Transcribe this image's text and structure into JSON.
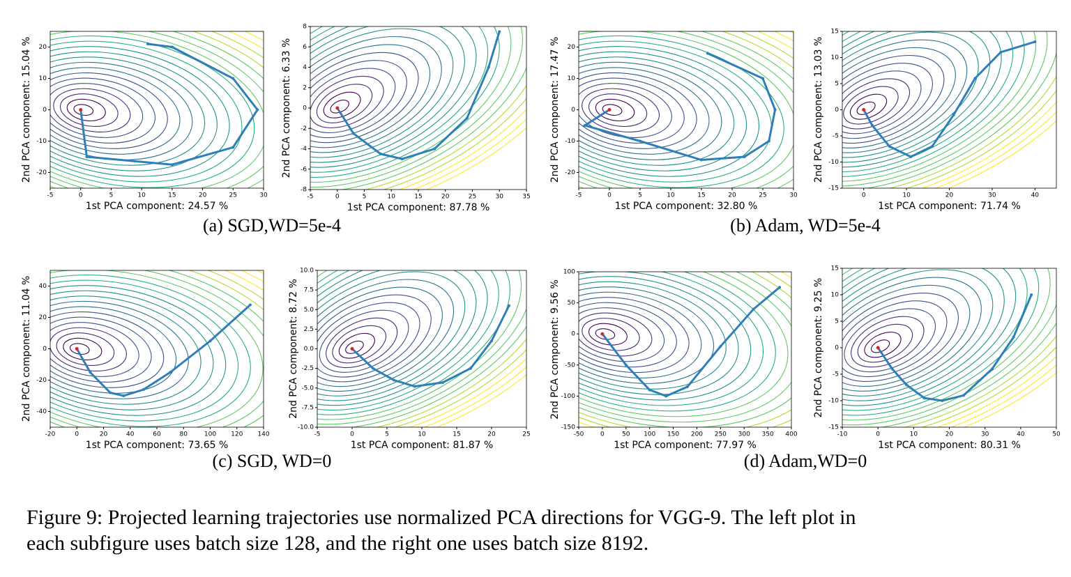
{
  "chart_data": [
    {
      "type": "line",
      "xlabel": "1st PCA component: 24.57 %",
      "ylabel": "2nd PCA component: 15.04 %",
      "xlim": [
        -5,
        30
      ],
      "xticks": [
        -5,
        0,
        5,
        10,
        15,
        20,
        25,
        30
      ],
      "ylim": [
        -25,
        25
      ],
      "yticks": [
        -20,
        -10,
        0,
        10,
        20
      ],
      "series": [
        {
          "color": "#2e7fb8",
          "x": [
            0,
            1,
            15,
            25,
            29,
            25,
            15,
            11
          ],
          "values": [
            0,
            -15,
            -17.5,
            -12,
            0,
            10,
            20,
            21
          ]
        }
      ],
      "start_color": "#d62728"
    },
    {
      "type": "line",
      "xlabel": "1st PCA component: 87.78 %",
      "ylabel": "2nd PCA component: 6.33 %",
      "xlim": [
        -5,
        35
      ],
      "xticks": [
        -5,
        0,
        5,
        10,
        15,
        20,
        25,
        30,
        35
      ],
      "ylim": [
        -8,
        8
      ],
      "yticks": [
        -8,
        -6,
        -4,
        -2,
        0,
        2,
        4,
        6,
        8
      ],
      "series": [
        {
          "color": "#2e7fb8",
          "x": [
            0,
            3,
            8,
            12,
            18,
            24,
            28,
            30
          ],
          "values": [
            0,
            -2.5,
            -4.5,
            -5,
            -4,
            -1,
            4,
            7.5
          ]
        }
      ],
      "start_color": "#d62728"
    },
    {
      "type": "line",
      "xlabel": "1st PCA component: 32.80 %",
      "ylabel": "2nd PCA component: 17.47 %",
      "xlim": [
        -5,
        30
      ],
      "xticks": [
        -5,
        0,
        5,
        10,
        15,
        20,
        25,
        30
      ],
      "ylim": [
        -25,
        25
      ],
      "yticks": [
        -20,
        -10,
        0,
        10,
        20
      ],
      "series": [
        {
          "color": "#2e7fb8",
          "x": [
            0,
            -4,
            5,
            15,
            22,
            26,
            27,
            25,
            16
          ],
          "values": [
            0,
            -5,
            -10,
            -16,
            -15,
            -10,
            0,
            10,
            18
          ]
        }
      ],
      "start_color": "#d62728"
    },
    {
      "type": "line",
      "xlabel": "1st PCA component: 71.74 %",
      "ylabel": "2nd PCA component: 13.03 %",
      "xlim": [
        -5,
        45
      ],
      "xticks": [
        0,
        10,
        20,
        30,
        40
      ],
      "ylim": [
        -15,
        15
      ],
      "yticks": [
        -15,
        -10,
        -5,
        0,
        5,
        10,
        15
      ],
      "series": [
        {
          "color": "#2e7fb8",
          "x": [
            0,
            2,
            6,
            11,
            16,
            21,
            26,
            32,
            40
          ],
          "values": [
            0,
            -3,
            -7,
            -9,
            -7,
            -1,
            6,
            11,
            13
          ]
        }
      ],
      "start_color": "#d62728"
    },
    {
      "type": "line",
      "xlabel": "1st PCA component: 73.65 %",
      "ylabel": "2nd PCA component: 11.04 %",
      "xlim": [
        -20,
        140
      ],
      "xticks": [
        -20,
        0,
        20,
        40,
        60,
        80,
        100,
        120,
        140
      ],
      "ylim": [
        -50,
        50
      ],
      "yticks": [
        -40,
        -20,
        0,
        20,
        40
      ],
      "series": [
        {
          "color": "#2e7fb8",
          "x": [
            0,
            10,
            25,
            35,
            50,
            70,
            100,
            130
          ],
          "values": [
            0,
            -15,
            -28,
            -30,
            -26,
            -15,
            5,
            28
          ]
        }
      ],
      "start_color": "#d62728"
    },
    {
      "type": "line",
      "xlabel": "1st PCA component: 81.87 %",
      "ylabel": "2nd PCA component: 8.72 %",
      "xlim": [
        -5,
        25
      ],
      "xticks": [
        -5,
        0,
        5,
        10,
        15,
        20,
        25
      ],
      "ylim": [
        -10,
        10
      ],
      "yticks": [
        {
          "value": -10,
          "label": "-10.0"
        },
        {
          "value": -7.5,
          "label": "-7.5"
        },
        {
          "value": -5,
          "label": "-5.0"
        },
        {
          "value": -2.5,
          "label": "-2.5"
        },
        {
          "value": 0,
          "label": "0.0"
        },
        {
          "value": 2.5,
          "label": "2.5"
        },
        {
          "value": 5,
          "label": "5.0"
        },
        {
          "value": 7.5,
          "label": "7.5"
        },
        {
          "value": 10,
          "label": "10.0"
        }
      ],
      "series": [
        {
          "color": "#2e7fb8",
          "x": [
            0,
            3,
            6,
            9,
            13,
            17,
            20,
            22.5
          ],
          "values": [
            0,
            -2.5,
            -4,
            -4.8,
            -4.3,
            -2.5,
            1,
            5.5
          ]
        }
      ],
      "start_color": "#d62728"
    },
    {
      "type": "line",
      "xlabel": "1st PCA component: 77.97 %",
      "ylabel": "2nd PCA component: 9.56 %",
      "xlim": [
        -50,
        400
      ],
      "xticks": [
        -50,
        0,
        50,
        100,
        150,
        200,
        250,
        300,
        350,
        400
      ],
      "ylim": [
        -150,
        100
      ],
      "yticks": [
        -150,
        -100,
        -50,
        0,
        50,
        100
      ],
      "series": [
        {
          "color": "#2e7fb8",
          "x": [
            0,
            50,
            100,
            135,
            180,
            250,
            320,
            375
          ],
          "values": [
            0,
            -50,
            -90,
            -100,
            -85,
            -20,
            40,
            75
          ]
        }
      ],
      "start_color": "#d62728"
    },
    {
      "type": "line",
      "xlabel": "1st PCA component: 80.31 %",
      "ylabel": "2nd PCA component: 9.25 %",
      "xlim": [
        -10,
        50
      ],
      "xticks": [
        -10,
        0,
        10,
        20,
        30,
        40,
        50
      ],
      "ylim": [
        -15,
        15
      ],
      "yticks": [
        -15,
        -10,
        -5,
        0,
        5,
        10,
        15
      ],
      "series": [
        {
          "color": "#2e7fb8",
          "x": [
            0,
            4,
            8,
            13,
            18,
            24,
            32,
            38,
            43
          ],
          "values": [
            0,
            -4,
            -7,
            -9.5,
            -10,
            -9,
            -4,
            2,
            10
          ]
        }
      ],
      "start_color": "#d62728"
    }
  ],
  "subcaptions": [
    "(a)  SGD,WD=5e-4",
    "(b)  Adam, WD=5e-4",
    "(c)  SGD, WD=0",
    "(d)  Adam,WD=0"
  ],
  "caption": [
    "Figure 9: Projected learning trajectories use normalized PCA directions for VGG-9. The left plot in",
    "each subfigure uses batch size 128, and the right one uses batch size 8192."
  ]
}
